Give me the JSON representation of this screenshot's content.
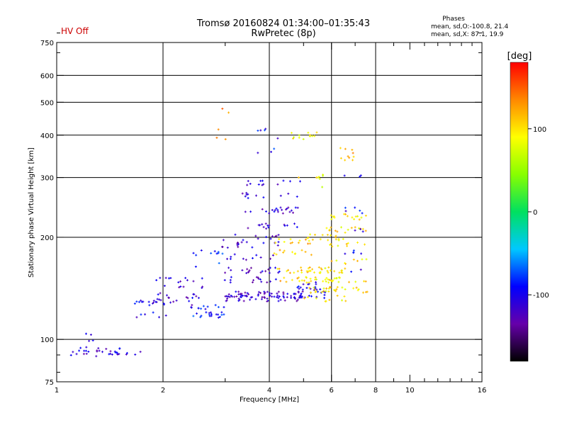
{
  "header": {
    "title_line1": "Tromsø 20160824 01:34:00–01:35:43",
    "title_line2": "RwPretec (8p)",
    "hv_status": "HV Off",
    "hv_color": "#cc0000",
    "phases_heading": "Phases",
    "phases_o": "mean, sd,O:-100.8, 21.4",
    "phases_x": "mean, sd,X:  87.1, 19.9"
  },
  "colorbar": {
    "unit": "[deg]",
    "ticks": [
      {
        "value": 100,
        "label": "100"
      },
      {
        "value": 0,
        "label": "0"
      },
      {
        "value": -100,
        "label": "-100"
      }
    ],
    "range": [
      -180,
      180
    ],
    "gradient": [
      "#000000",
      "#6600aa",
      "#0000ff",
      "#00c8ff",
      "#00e060",
      "#88ff00",
      "#ffff00",
      "#ff8800",
      "#ff0000"
    ]
  },
  "chart_data": {
    "type": "scatter",
    "title": "",
    "xlabel": "Frequency [MHz]",
    "ylabel": "Stationary phase Virtual Height [km]",
    "x_scale": "log",
    "y_scale": "log",
    "xlim": [
      1,
      16
    ],
    "ylim": [
      75,
      750
    ],
    "x_ticks": [
      1,
      2,
      4,
      6,
      8,
      10,
      16
    ],
    "x_tick_labels": [
      "1",
      "2",
      "4",
      "6",
      "8",
      "10",
      "16"
    ],
    "y_ticks": [
      75,
      100,
      200,
      300,
      400,
      500,
      600,
      750
    ],
    "y_tick_labels": [
      "75",
      "100",
      "200",
      "300",
      "400",
      "500",
      "600",
      "750"
    ],
    "grid": true,
    "x_grid": [
      2,
      4,
      6,
      8
    ],
    "y_grid": [
      100,
      200,
      300,
      400,
      500,
      600
    ],
    "traces": [
      {
        "x_range": [
          1.05,
          1.75
        ],
        "heights": [
          90,
          91,
          92,
          93
        ],
        "phase": -110,
        "n": 34
      },
      {
        "x_range": [
          1.2,
          1.3
        ],
        "heights": [
          100,
          102
        ],
        "phase": -105,
        "n": 4
      },
      {
        "x_range": [
          1.65,
          2.05
        ],
        "heights": [
          118,
          128,
          130
        ],
        "phase": -105,
        "n": 22
      },
      {
        "x_range": [
          1.9,
          2.6
        ],
        "heights": [
          128,
          135,
          142,
          150
        ],
        "phase": -112,
        "n": 36
      },
      {
        "x_range": [
          2.4,
          3.0
        ],
        "heights": [
          118,
          125,
          165,
          180
        ],
        "phase": -90,
        "n": 40
      },
      {
        "x_range": [
          3.0,
          5.0
        ],
        "heights": [
          132,
          134,
          136
        ],
        "phase": -115,
        "n": 95
      },
      {
        "x_range": [
          4.8,
          5.8
        ],
        "heights": [
          135,
          140,
          145
        ],
        "phase": -105,
        "n": 30
      },
      {
        "x_range": [
          2.9,
          4.3
        ],
        "heights": [
          150,
          160,
          175,
          190,
          200
        ],
        "phase": -115,
        "n": 70
      },
      {
        "x_range": [
          3.3,
          4.9
        ],
        "heights": [
          215,
          240,
          265,
          290
        ],
        "phase": -110,
        "n": 60
      },
      {
        "x_range": [
          3.6,
          4.3
        ],
        "heights": [
          360,
          390,
          410
        ],
        "phase": -95,
        "n": 8
      },
      {
        "x_range": [
          4.1,
          5.3
        ],
        "heights": [
          150,
          160,
          180,
          195
        ],
        "phase": 110,
        "n": 45
      },
      {
        "x_range": [
          5.0,
          6.6
        ],
        "heights": [
          132,
          140,
          150,
          160,
          200
        ],
        "phase": 95,
        "n": 85
      },
      {
        "x_range": [
          5.8,
          7.6
        ],
        "heights": [
          140,
          150,
          170,
          190,
          210,
          230
        ],
        "phase": 100,
        "n": 70
      },
      {
        "x_range": [
          4.6,
          5.7
        ],
        "heights": [
          280,
          300,
          390,
          400
        ],
        "phase": 90,
        "n": 20
      },
      {
        "x_range": [
          6.3,
          7.0
        ],
        "heights": [
          340,
          350,
          360
        ],
        "phase": 120,
        "n": 10
      },
      {
        "x_range": [
          6.5,
          7.4
        ],
        "heights": [
          160,
          180,
          210,
          240,
          300
        ],
        "phase": -100,
        "n": 18
      },
      {
        "x_range": [
          2.8,
          3.4
        ],
        "heights": [
          390,
          420,
          470
        ],
        "phase": 130,
        "n": 5
      }
    ]
  }
}
